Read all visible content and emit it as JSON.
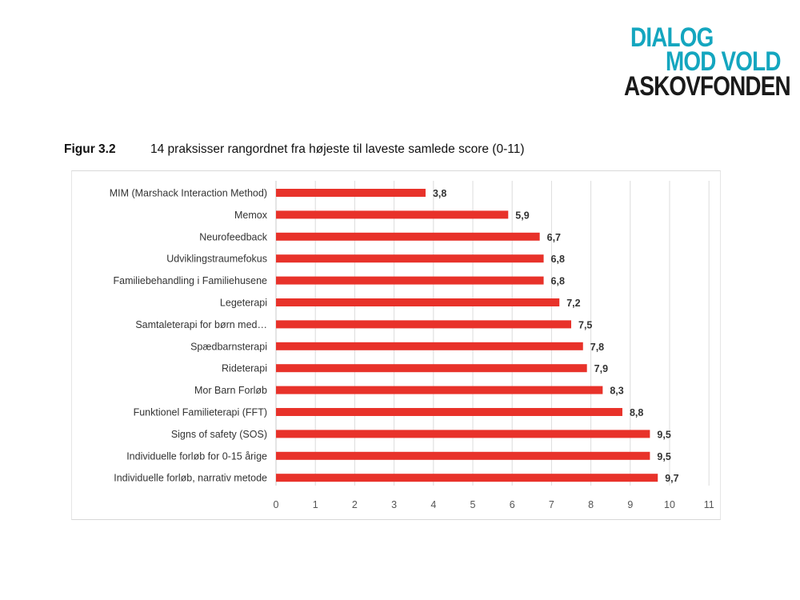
{
  "logo": {
    "line1": "DIALOG",
    "line2": "MOD VOLD",
    "line3": "ASKOVFONDEN",
    "color_primary": "#14a6bf",
    "color_secondary": "#1a1a1a"
  },
  "figure": {
    "number": "Figur 3.2",
    "caption": "14 praksisser rangordnet fra højeste til laveste samlede score (0-11)"
  },
  "chart_data": {
    "type": "bar",
    "orientation": "horizontal",
    "categories": [
      "MIM (Marshack Interaction Method)",
      "Memox",
      "Neurofeedback",
      "Udviklingstraumefokus",
      "Familiebehandling i Familiehusene",
      "Legeterapi",
      "Samtaleterapi for børn med…",
      "Spædbarnsterapi",
      "Rideterapi",
      "Mor Barn Forløb",
      "Funktionel Familieterapi (FFT)",
      "Signs of safety (SOS)",
      "Individuelle forløb for 0-15 årige",
      "Individuelle forløb, narrativ metode"
    ],
    "values": [
      3.8,
      5.9,
      6.7,
      6.8,
      6.8,
      7.2,
      7.5,
      7.8,
      7.9,
      8.3,
      8.8,
      9.5,
      9.5,
      9.7
    ],
    "data_labels": [
      "3,8",
      "5,9",
      "6,7",
      "6,8",
      "6,8",
      "7,2",
      "7,5",
      "7,8",
      "7,9",
      "8,3",
      "8,8",
      "9,5",
      "9,5",
      "9,7"
    ],
    "xlim": [
      0,
      11
    ],
    "xticks": [
      "0",
      "1",
      "2",
      "3",
      "4",
      "5",
      "6",
      "7",
      "8",
      "9",
      "10",
      "11"
    ],
    "grid": true,
    "legend": "none",
    "bar_color": "#e8322a"
  }
}
